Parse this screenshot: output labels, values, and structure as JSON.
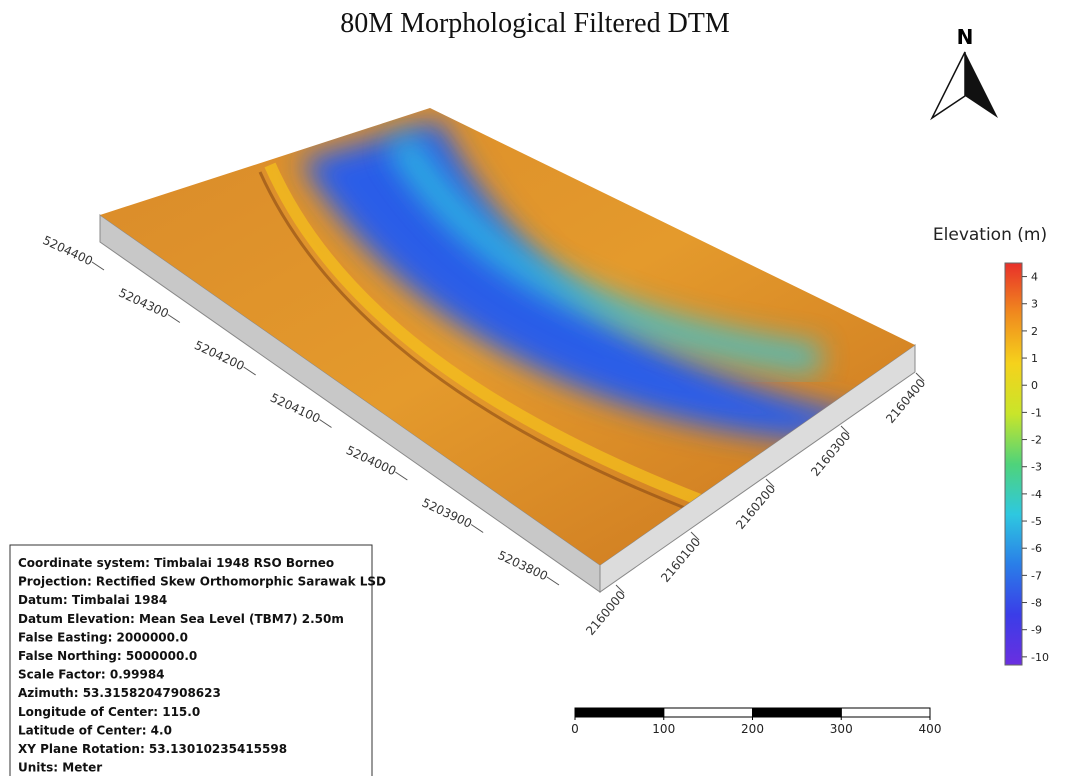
{
  "title": "80M Morphological Filtered DTM",
  "north_arrow": {
    "label": "N"
  },
  "northing": {
    "labels": [
      5204400,
      5204300,
      5204200,
      5204100,
      5204000,
      5203900,
      5203800
    ]
  },
  "easting": {
    "labels": [
      2160000,
      2160100,
      2160200,
      2160300,
      2160400
    ]
  },
  "colorbar": {
    "title": "Elevation (m)",
    "ylim": [
      -10.3,
      4.5
    ],
    "ticks": [
      4,
      3,
      2,
      1,
      0,
      -1,
      -2,
      -3,
      -4,
      -5,
      -6,
      -7,
      -8,
      -9,
      -10
    ],
    "colors": [
      "#e8302a",
      "#f08a1e",
      "#f5d21c",
      "#c9e52a",
      "#4fd37a",
      "#2ec8e0",
      "#2a7ee8",
      "#3a3de8",
      "#6a2fe0"
    ]
  },
  "scale_bar": {
    "ticks": [
      0,
      100,
      200,
      300,
      400
    ]
  },
  "info_box": {
    "lines": [
      "Coordinate system: Timbalai 1948 RSO Borneo",
      "Projection: Rectified Skew Orthomorphic Sarawak LSD",
      "Datum: Timbalai 1984",
      "Datum Elevation: Mean Sea Level (TBM7) 2.50m",
      "False Easting: 2000000.0",
      "False Northing: 5000000.0",
      "Scale Factor: 0.99984",
      "Azimuth: 53.31582047908623",
      "Longitude of Center: 115.0",
      "Latitude of Center: 4.0",
      "XY Plane Rotation: 53.13010235415598",
      "Units: Meter"
    ]
  }
}
